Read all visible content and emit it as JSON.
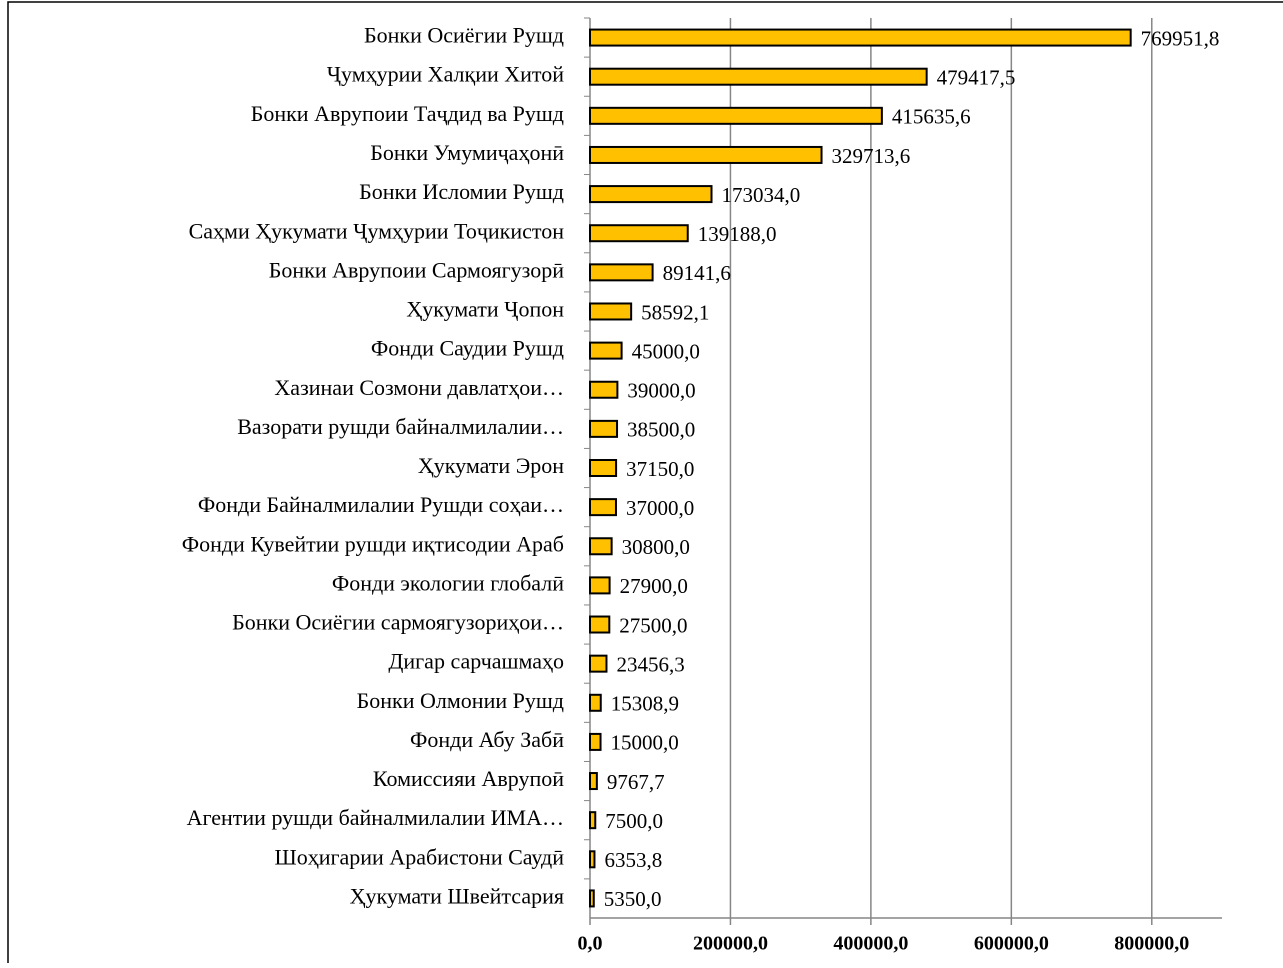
{
  "chart_data": {
    "type": "barh",
    "categories": [
      "Бонки Осиёгии Рушд",
      "Ҷумҳурии Халқии Хитой",
      "Бонки Аврупоии Таҷдид ва Рушд",
      "Бонки Умумиҷаҳонӣ",
      "Бонки Исломии Рушд",
      "Саҳми Ҳукумати Ҷумҳурии Тоҷикистон",
      "Бонки Аврупоии Сармоягузорӣ",
      "Ҳукумати Ҷопон",
      "Фонди Саудии Рушд",
      "Хазинаи Созмони давлатҳои…",
      "Вазорати рушди байналмилалии…",
      "Ҳукумати Эрон",
      "Фонди Байналмилалии Рушди соҳаи…",
      "Фонди Кувейтии рушди иқтисодии Араб",
      "Фонди экологии глобалӣ",
      "Бонки Осиёгии сармоягузориҳои…",
      "Дигар сарчашмаҳо",
      "Бонки Олмонии Рушд",
      "Фонди Абу Забӣ",
      "Комиссияи Аврупоӣ",
      "Агентии рушди байналмилалии  ИМА…",
      "Шоҳигарии Арабистони Саудӣ",
      "Ҳукумати Швейтсария"
    ],
    "values": [
      769951.8,
      479417.5,
      415635.6,
      329713.6,
      173034.0,
      139188.0,
      89141.6,
      58592.1,
      45000.0,
      39000.0,
      38500.0,
      37150.0,
      37000.0,
      30800.0,
      27900.0,
      27500.0,
      23456.3,
      15308.9,
      15000.0,
      9767.7,
      7500.0,
      6353.8,
      5350.0
    ],
    "value_labels": [
      "769951,8",
      "479417,5",
      "415635,6",
      "329713,6",
      "173034,0",
      "139188,0",
      "89141,6",
      "58592,1",
      "45000,0",
      "39000,0",
      "38500,0",
      "37150,0",
      "37000,0",
      "30800,0",
      "27900,0",
      "27500,0",
      "23456,3",
      "15308,9",
      "15000,0",
      "9767,7",
      "7500,0",
      "6353,8",
      "5350,0"
    ],
    "color": "#FFC000",
    "xlim": [
      0,
      900000
    ],
    "xticks": [
      {
        "value": 0,
        "label": "0,0"
      },
      {
        "value": 200000,
        "label": "200000,0"
      },
      {
        "value": 400000,
        "label": "400000,0"
      },
      {
        "value": 600000,
        "label": "600000,0"
      },
      {
        "value": 800000,
        "label": "800000,0"
      }
    ],
    "grid": true
  }
}
